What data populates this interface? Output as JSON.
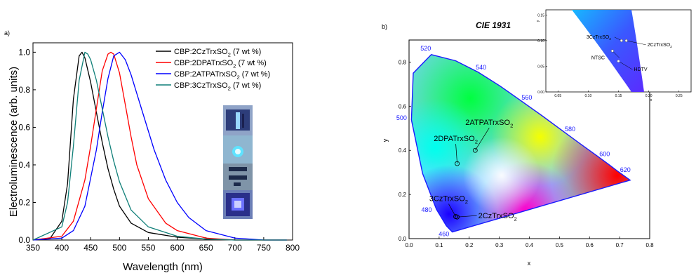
{
  "panel_a": {
    "label": "a)",
    "xlabel": "Wavelength (nm)",
    "ylabel": "Electroluminescence (arb. units)",
    "xticks": [
      "350",
      "400",
      "450",
      "500",
      "550",
      "600",
      "650",
      "700",
      "750",
      "800"
    ],
    "yticks": [
      "0.0",
      "0.2",
      "0.4",
      "0.6",
      "0.8",
      "1.0"
    ],
    "legend": [
      {
        "name": "CBP:2CzTrxSO",
        "sub": "2",
        "suffix": " (7 wt %)",
        "color": "#000000"
      },
      {
        "name": "CBP:2DPATrxSO",
        "sub": "2",
        "suffix": " (7 wt %)",
        "color": "#ff0000"
      },
      {
        "name": "CBP:2ATPATrxSO",
        "sub": "2",
        "suffix": " (7 wt %)",
        "color": "#0000ff"
      },
      {
        "name": "CBP:3CzTrxSO",
        "sub": "2",
        "suffix": " (7 wt %)",
        "color": "#0f7f78"
      }
    ]
  },
  "panel_b": {
    "label": "b)",
    "title": "CIE 1931",
    "xlabel": "x",
    "ylabel": "y",
    "xticks": [
      "0.0",
      "0.1",
      "0.2",
      "0.3",
      "0.4",
      "0.5",
      "0.6",
      "0.7",
      "0.8"
    ],
    "yticks": [
      "0.0",
      "0.2",
      "0.4",
      "0.6",
      "0.8"
    ],
    "wavelength_labels": [
      "460",
      "480",
      "500",
      "520",
      "540",
      "560",
      "580",
      "600",
      "620"
    ],
    "points": [
      {
        "name": "2DPATrxSO",
        "sub": "2"
      },
      {
        "name": "2ATPATrxSO",
        "sub": "2"
      },
      {
        "name": "3CzTrxSO",
        "sub": "2"
      },
      {
        "name": "2CzTrxSO",
        "sub": "2"
      }
    ],
    "inset": {
      "xlabel": "x",
      "ylabel": "y",
      "xticks": [
        "0.05",
        "0.10",
        "0.15",
        "0.20",
        "0.25"
      ],
      "yticks": [
        "0.00",
        "0.05",
        "0.10",
        "0.15"
      ],
      "labels": [
        {
          "name": "3CzTrxSO",
          "sub": "2"
        },
        {
          "name": "2CzTrxSO",
          "sub": "2"
        },
        {
          "name": "NTSC",
          "sub": ""
        },
        {
          "name": "HDTV",
          "sub": ""
        }
      ]
    }
  },
  "chart_data": [
    {
      "type": "line",
      "xlabel": "Wavelength (nm)",
      "ylabel": "Electroluminescence (arb. units)",
      "xlim": [
        350,
        800
      ],
      "ylim": [
        0,
        1.05
      ],
      "series": [
        {
          "name": "CBP:2CzTrxSO2 (7 wt %)",
          "color": "#000000",
          "x": [
            350,
            380,
            400,
            410,
            420,
            430,
            435,
            440,
            450,
            460,
            470,
            480,
            490,
            500,
            520,
            550,
            600,
            650,
            700,
            790
          ],
          "y": [
            0.0,
            0.01,
            0.1,
            0.3,
            0.75,
            0.98,
            1.0,
            0.97,
            0.84,
            0.68,
            0.52,
            0.38,
            0.27,
            0.18,
            0.09,
            0.04,
            0.015,
            0.005,
            0.0,
            0.0
          ]
        },
        {
          "name": "CBP:2DPATrxSO2 (7 wt %)",
          "color": "#ff0000",
          "x": [
            350,
            400,
            420,
            440,
            450,
            460,
            470,
            480,
            485,
            490,
            500,
            510,
            520,
            530,
            550,
            580,
            600,
            650,
            700,
            790
          ],
          "y": [
            0.0,
            0.02,
            0.1,
            0.32,
            0.5,
            0.7,
            0.9,
            0.99,
            1.0,
            0.99,
            0.89,
            0.72,
            0.55,
            0.4,
            0.22,
            0.09,
            0.05,
            0.01,
            0.0,
            0.0
          ]
        },
        {
          "name": "CBP:2ATPATrxSO2 (7 wt %)",
          "color": "#0000ff",
          "x": [
            350,
            400,
            420,
            440,
            460,
            470,
            480,
            490,
            500,
            510,
            520,
            540,
            560,
            580,
            600,
            620,
            650,
            700,
            750,
            790
          ],
          "y": [
            0.0,
            0.01,
            0.05,
            0.18,
            0.48,
            0.68,
            0.86,
            0.98,
            1.0,
            0.96,
            0.88,
            0.68,
            0.48,
            0.32,
            0.2,
            0.12,
            0.05,
            0.01,
            0.0,
            0.0
          ]
        },
        {
          "name": "CBP:3CzTrxSO2 (7 wt %)",
          "color": "#0f7f78",
          "x": [
            350,
            400,
            410,
            420,
            430,
            440,
            445,
            450,
            460,
            470,
            480,
            490,
            500,
            520,
            550,
            600,
            650,
            700,
            790
          ],
          "y": [
            0.0,
            0.07,
            0.2,
            0.5,
            0.85,
            1.0,
            0.99,
            0.96,
            0.85,
            0.7,
            0.55,
            0.42,
            0.31,
            0.16,
            0.07,
            0.02,
            0.005,
            0.0,
            0.0
          ]
        }
      ]
    },
    {
      "type": "scatter",
      "title": "CIE 1931",
      "xlabel": "x",
      "ylabel": "y",
      "xlim": [
        0,
        0.8
      ],
      "ylim": [
        0,
        0.9
      ],
      "locus": {
        "wavelength": [
          460,
          470,
          480,
          490,
          500,
          510,
          520,
          530,
          540,
          550,
          560,
          570,
          580,
          590,
          600,
          610,
          620,
          700
        ],
        "x": [
          0.144,
          0.124,
          0.091,
          0.045,
          0.008,
          0.014,
          0.074,
          0.155,
          0.23,
          0.302,
          0.373,
          0.444,
          0.512,
          0.575,
          0.627,
          0.666,
          0.691,
          0.735
        ],
        "y": [
          0.03,
          0.058,
          0.133,
          0.295,
          0.538,
          0.75,
          0.834,
          0.806,
          0.754,
          0.692,
          0.624,
          0.555,
          0.487,
          0.424,
          0.373,
          0.334,
          0.308,
          0.265
        ]
      },
      "points": [
        {
          "name": "2DPATrxSO2",
          "x": 0.16,
          "y": 0.34
        },
        {
          "name": "2ATPATrxSO2",
          "x": 0.22,
          "y": 0.4
        },
        {
          "name": "3CzTrxSO2",
          "x": 0.155,
          "y": 0.1
        },
        {
          "name": "2CzTrxSO2",
          "x": 0.16,
          "y": 0.098
        }
      ]
    },
    {
      "type": "scatter",
      "title": "",
      "xlabel": "x",
      "ylabel": "y",
      "xlim": [
        0.03,
        0.27
      ],
      "ylim": [
        0,
        0.16
      ],
      "points": [
        {
          "name": "3CzTrxSO2",
          "x": 0.155,
          "y": 0.1
        },
        {
          "name": "2CzTrxSO2",
          "x": 0.163,
          "y": 0.1
        },
        {
          "name": "NTSC",
          "x": 0.14,
          "y": 0.08
        },
        {
          "name": "HDTV",
          "x": 0.15,
          "y": 0.06
        }
      ]
    }
  ]
}
